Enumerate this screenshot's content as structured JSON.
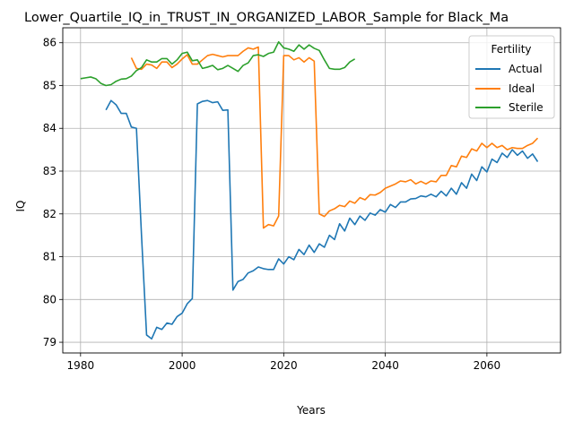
{
  "chart_data": {
    "type": "line",
    "title": "Lower_Quartile_IQ_in_TRUST_IN_ORGANIZED_LABOR_Sample for Black_Ma",
    "xlabel": "Years",
    "ylabel": "IQ",
    "xlim": [
      1976.5,
      2074.5
    ],
    "ylim": [
      78.75,
      86.35
    ],
    "xticks": [
      1980,
      2000,
      2020,
      2040,
      2060
    ],
    "yticks": [
      79,
      80,
      81,
      82,
      83,
      84,
      85,
      86
    ],
    "xtick_labels": [
      "1980",
      "2000",
      "2020",
      "2040",
      "2060"
    ],
    "ytick_labels": [
      "79",
      "80",
      "81",
      "82",
      "83",
      "84",
      "85",
      "86"
    ],
    "grid": true,
    "legend": {
      "title": "Fertility",
      "placement": "upper-right"
    },
    "series": [
      {
        "name": "Actual",
        "color": "#1f77b4",
        "x": [
          1985,
          1986,
          1987,
          1988,
          1989,
          1990,
          1991,
          1992,
          1993,
          1994,
          1995,
          1996,
          1997,
          1998,
          1999,
          2000,
          2001,
          2002,
          2003,
          2004,
          2005,
          2006,
          2007,
          2008,
          2009,
          2010,
          2011,
          2012,
          2013,
          2014,
          2015,
          2016,
          2017,
          2018,
          2019,
          2020,
          2021,
          2022,
          2023,
          2024,
          2025,
          2026,
          2027,
          2028,
          2029,
          2030,
          2031,
          2032,
          2033,
          2034,
          2035,
          2036,
          2037,
          2038,
          2039,
          2040,
          2041,
          2042,
          2043,
          2044,
          2045,
          2046,
          2047,
          2048,
          2049,
          2050,
          2051,
          2052,
          2053,
          2054,
          2055,
          2056,
          2057,
          2058,
          2059,
          2060,
          2061,
          2062,
          2063,
          2064,
          2065,
          2066,
          2067,
          2068,
          2069,
          2070
        ],
        "y": [
          84.43,
          84.65,
          84.55,
          84.35,
          84.35,
          84.03,
          84.0,
          81.5,
          79.17,
          79.08,
          79.35,
          79.3,
          79.45,
          79.42,
          79.6,
          79.68,
          79.9,
          80.02,
          84.57,
          84.63,
          84.65,
          84.6,
          84.62,
          84.42,
          84.43,
          80.22,
          80.42,
          80.47,
          80.62,
          80.67,
          80.76,
          80.72,
          80.7,
          80.7,
          80.95,
          80.83,
          81.0,
          80.93,
          81.17,
          81.05,
          81.27,
          81.1,
          81.3,
          81.22,
          81.5,
          81.4,
          81.77,
          81.6,
          81.9,
          81.75,
          81.95,
          81.85,
          82.02,
          81.97,
          82.1,
          82.04,
          82.22,
          82.15,
          82.28,
          82.28,
          82.35,
          82.36,
          82.42,
          82.4,
          82.46,
          82.4,
          82.53,
          82.42,
          82.6,
          82.46,
          82.73,
          82.6,
          82.93,
          82.78,
          83.1,
          82.98,
          83.28,
          83.2,
          83.42,
          83.32,
          83.5,
          83.37,
          83.47,
          83.3,
          83.4,
          83.22
        ]
      },
      {
        "name": "Ideal",
        "color": "#ff7f0e",
        "x": [
          1990,
          1991,
          1992,
          1993,
          1994,
          1995,
          1996,
          1997,
          1998,
          1999,
          2000,
          2001,
          2002,
          2003,
          2004,
          2005,
          2006,
          2007,
          2008,
          2009,
          2010,
          2011,
          2012,
          2013,
          2014,
          2015,
          2016,
          2017,
          2018,
          2019,
          2020,
          2021,
          2022,
          2023,
          2024,
          2025,
          2026,
          2027,
          2028,
          2029,
          2030,
          2031,
          2032,
          2033,
          2034,
          2035,
          2036,
          2037,
          2038,
          2039,
          2040,
          2041,
          2042,
          2043,
          2044,
          2045,
          2046,
          2047,
          2048,
          2049,
          2050,
          2051,
          2052,
          2053,
          2054,
          2055,
          2056,
          2057,
          2058,
          2059,
          2060,
          2061,
          2062,
          2063,
          2064,
          2065,
          2066,
          2067,
          2068,
          2069,
          2070
        ],
        "y": [
          85.65,
          85.4,
          85.38,
          85.5,
          85.48,
          85.4,
          85.55,
          85.55,
          85.42,
          85.5,
          85.62,
          85.72,
          85.5,
          85.5,
          85.6,
          85.7,
          85.73,
          85.7,
          85.67,
          85.7,
          85.7,
          85.7,
          85.8,
          85.88,
          85.85,
          85.9,
          81.67,
          81.75,
          81.72,
          81.95,
          85.7,
          85.7,
          85.6,
          85.65,
          85.55,
          85.65,
          85.57,
          82.0,
          81.94,
          82.07,
          82.12,
          82.2,
          82.17,
          82.3,
          82.25,
          82.38,
          82.33,
          82.45,
          82.44,
          82.5,
          82.6,
          82.65,
          82.7,
          82.77,
          82.75,
          82.8,
          82.7,
          82.76,
          82.7,
          82.77,
          82.75,
          82.9,
          82.9,
          83.13,
          83.1,
          83.35,
          83.32,
          83.52,
          83.47,
          83.65,
          83.55,
          83.65,
          83.55,
          83.6,
          83.5,
          83.55,
          83.53,
          83.53,
          83.6,
          83.65,
          83.77
        ]
      },
      {
        "name": "Sterile",
        "color": "#2ca02c",
        "x": [
          1980,
          1981,
          1982,
          1983,
          1984,
          1985,
          1986,
          1987,
          1988,
          1989,
          1990,
          1991,
          1992,
          1993,
          1994,
          1995,
          1996,
          1997,
          1998,
          1999,
          2000,
          2001,
          2002,
          2003,
          2004,
          2005,
          2006,
          2007,
          2008,
          2009,
          2010,
          2011,
          2012,
          2013,
          2014,
          2015,
          2016,
          2017,
          2018,
          2019,
          2020,
          2021,
          2022,
          2023,
          2024,
          2025,
          2026,
          2027,
          2028,
          2029,
          2030,
          2031,
          2032,
          2033,
          2034
        ],
        "y": [
          85.16,
          85.18,
          85.2,
          85.16,
          85.05,
          85.0,
          85.02,
          85.1,
          85.15,
          85.16,
          85.22,
          85.35,
          85.42,
          85.6,
          85.55,
          85.55,
          85.63,
          85.63,
          85.5,
          85.6,
          85.75,
          85.78,
          85.58,
          85.6,
          85.4,
          85.43,
          85.47,
          85.37,
          85.4,
          85.47,
          85.4,
          85.33,
          85.47,
          85.53,
          85.7,
          85.72,
          85.68,
          85.75,
          85.78,
          86.02,
          85.88,
          85.85,
          85.8,
          85.95,
          85.85,
          85.95,
          85.87,
          85.82,
          85.6,
          85.4,
          85.38,
          85.38,
          85.42,
          85.55,
          85.62
        ]
      }
    ]
  }
}
